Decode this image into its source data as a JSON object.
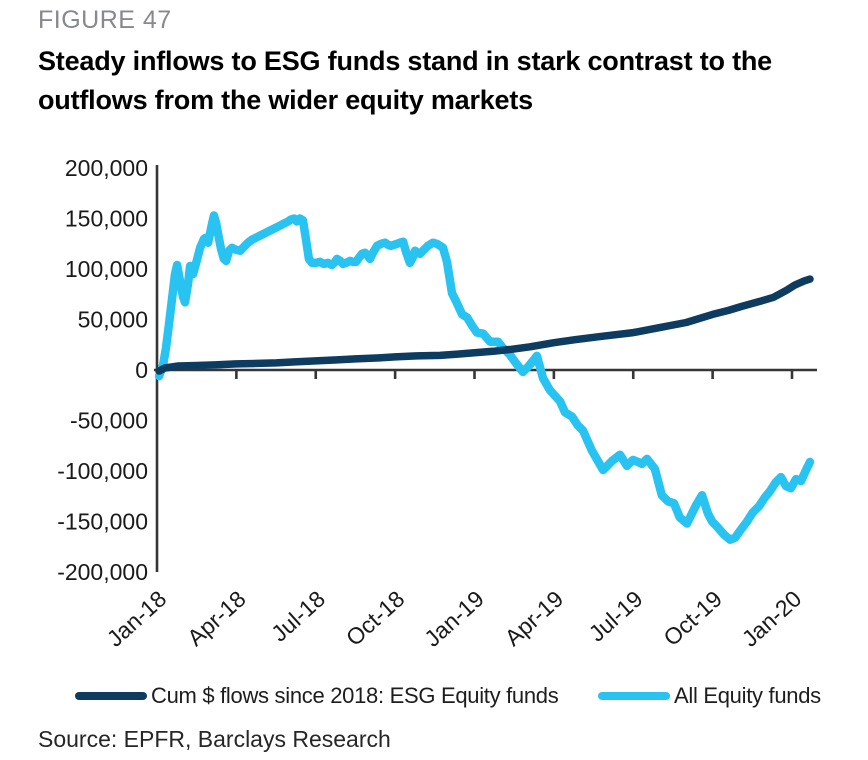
{
  "figure_label": "FIGURE 47",
  "title_line1": "Steady inflows to ESG funds stand in stark contrast to the",
  "title_line2": "outflows from the wider equity markets",
  "source": "Source: EPFR, Barclays Research",
  "colors": {
    "esg_navy": "#0e3c61",
    "all_equity_blue": "#29c3f2",
    "axis": "#363636",
    "tick_text": "#1a1a1a",
    "figure_label_gray": "#87898c"
  },
  "legend": {
    "items": [
      {
        "label": "Cum $ flows since 2018: ESG Equity funds",
        "series": "esg"
      },
      {
        "label": "All Equity funds",
        "series": "all_equity"
      }
    ]
  },
  "chart_data": {
    "type": "line",
    "title": "Steady inflows to ESG funds stand in stark contrast to the outflows from the wider equity markets",
    "x_axis": {
      "unit": "months since Jan-2018",
      "range": [
        0,
        24.9
      ],
      "ticks": [
        {
          "t": 0,
          "label": "Jan-18"
        },
        {
          "t": 3,
          "label": "Apr-18"
        },
        {
          "t": 6,
          "label": "Jul-18"
        },
        {
          "t": 9,
          "label": "Oct-18"
        },
        {
          "t": 12,
          "label": "Jan-19"
        },
        {
          "t": 15,
          "label": "Apr-19"
        },
        {
          "t": 18,
          "label": "Jul-19"
        },
        {
          "t": 21,
          "label": "Oct-19"
        },
        {
          "t": 24,
          "label": "Jan-20"
        }
      ]
    },
    "y_axis": {
      "unit": "USD mn, cumulative flows",
      "range": [
        -200000,
        200000
      ],
      "grid": false,
      "ticks": [
        {
          "v": 200000,
          "label": "200,000"
        },
        {
          "v": 150000,
          "label": "150,000"
        },
        {
          "v": 100000,
          "label": "100,000"
        },
        {
          "v": 50000,
          "label": "50,000"
        },
        {
          "v": 0,
          "label": "0"
        },
        {
          "v": -50000,
          "label": "-50,000"
        },
        {
          "v": -100000,
          "label": "-100,000"
        },
        {
          "v": -150000,
          "label": "-150,000"
        },
        {
          "v": -200000,
          "label": "-200,000"
        }
      ]
    },
    "series": [
      {
        "name": "Cum $ flows since 2018: ESG Equity funds",
        "id": "esg",
        "color": "#0e3c61",
        "stroke_width": 7.5,
        "points": [
          [
            0.08,
            -1000
          ],
          [
            0.3,
            2000
          ],
          [
            0.8,
            4000
          ],
          [
            1.5,
            4500
          ],
          [
            2.2,
            5000
          ],
          [
            3.0,
            6000
          ],
          [
            3.8,
            6500
          ],
          [
            4.5,
            7000
          ],
          [
            5.2,
            8000
          ],
          [
            6.0,
            9000
          ],
          [
            6.8,
            10000
          ],
          [
            7.5,
            11000
          ],
          [
            8.4,
            12000
          ],
          [
            9.0,
            13000
          ],
          [
            9.8,
            14000
          ],
          [
            10.7,
            14500
          ],
          [
            11.3,
            15500
          ],
          [
            12.0,
            17000
          ],
          [
            12.7,
            18500
          ],
          [
            13.4,
            20500
          ],
          [
            14.1,
            23000
          ],
          [
            15.0,
            27000
          ],
          [
            15.8,
            30000
          ],
          [
            16.7,
            33000
          ],
          [
            18.0,
            37000
          ],
          [
            19.0,
            42000
          ],
          [
            20.0,
            47000
          ],
          [
            21.0,
            55000
          ],
          [
            21.6,
            59000
          ],
          [
            22.1,
            63000
          ],
          [
            22.8,
            68000
          ],
          [
            23.3,
            72000
          ],
          [
            23.8,
            79000
          ],
          [
            24.1,
            84000
          ],
          [
            24.45,
            88000
          ],
          [
            24.68,
            90000
          ]
        ]
      },
      {
        "name": "All Equity funds",
        "id": "all_equity",
        "color": "#29c3f2",
        "stroke_width": 8.5,
        "points": [
          [
            0.08,
            -6000
          ],
          [
            0.23,
            5000
          ],
          [
            0.34,
            22000
          ],
          [
            0.45,
            45000
          ],
          [
            0.57,
            71000
          ],
          [
            0.68,
            95000
          ],
          [
            0.76,
            104000
          ],
          [
            0.87,
            88000
          ],
          [
            0.98,
            73000
          ],
          [
            1.06,
            67000
          ],
          [
            1.17,
            85000
          ],
          [
            1.25,
            103000
          ],
          [
            1.36,
            95000
          ],
          [
            1.47,
            105000
          ],
          [
            1.63,
            121000
          ],
          [
            1.78,
            130000
          ],
          [
            1.85,
            131000
          ],
          [
            1.93,
            126000
          ],
          [
            2.04,
            140000
          ],
          [
            2.15,
            153000
          ],
          [
            2.23,
            146000
          ],
          [
            2.31,
            135000
          ],
          [
            2.42,
            120000
          ],
          [
            2.53,
            110000
          ],
          [
            2.61,
            108000
          ],
          [
            2.72,
            118000
          ],
          [
            2.83,
            121000
          ],
          [
            2.99,
            119000
          ],
          [
            3.14,
            118000
          ],
          [
            3.29,
            122000
          ],
          [
            3.44,
            126000
          ],
          [
            3.59,
            129000
          ],
          [
            3.74,
            131000
          ],
          [
            3.89,
            133000
          ],
          [
            4.04,
            135000
          ],
          [
            4.2,
            137000
          ],
          [
            4.35,
            139000
          ],
          [
            4.5,
            141000
          ],
          [
            4.65,
            143000
          ],
          [
            4.8,
            145000
          ],
          [
            4.95,
            147000
          ],
          [
            5.06,
            149000
          ],
          [
            5.18,
            150000
          ],
          [
            5.29,
            147000
          ],
          [
            5.4,
            150000
          ],
          [
            5.52,
            148000
          ],
          [
            5.63,
            129000
          ],
          [
            5.74,
            110000
          ],
          [
            5.86,
            106000
          ],
          [
            6.01,
            106000
          ],
          [
            6.16,
            107000
          ],
          [
            6.31,
            105000
          ],
          [
            6.46,
            106000
          ],
          [
            6.61,
            104000
          ],
          [
            6.73,
            107000
          ],
          [
            6.8,
            110000
          ],
          [
            6.92,
            108000
          ],
          [
            7.03,
            105000
          ],
          [
            7.14,
            106000
          ],
          [
            7.3,
            108000
          ],
          [
            7.41,
            107000
          ],
          [
            7.52,
            107000
          ],
          [
            7.63,
            111000
          ],
          [
            7.75,
            115000
          ],
          [
            7.86,
            116000
          ],
          [
            7.97,
            113000
          ],
          [
            8.05,
            110000
          ],
          [
            8.16,
            116000
          ],
          [
            8.32,
            123000
          ],
          [
            8.47,
            125000
          ],
          [
            8.62,
            126000
          ],
          [
            8.73,
            124000
          ],
          [
            8.84,
            123000
          ],
          [
            8.96,
            124000
          ],
          [
            9.07,
            125000
          ],
          [
            9.18,
            126000
          ],
          [
            9.3,
            127000
          ],
          [
            9.41,
            117000
          ],
          [
            9.56,
            106000
          ],
          [
            9.68,
            112000
          ],
          [
            9.75,
            118000
          ],
          [
            9.86,
            116000
          ],
          [
            9.94,
            115000
          ],
          [
            10.05,
            118000
          ],
          [
            10.13,
            120000
          ],
          [
            10.24,
            123000
          ],
          [
            10.36,
            125000
          ],
          [
            10.43,
            126000
          ],
          [
            10.58,
            125000
          ],
          [
            10.7,
            123000
          ],
          [
            10.81,
            121000
          ],
          [
            10.96,
            107000
          ],
          [
            11.15,
            76000
          ],
          [
            11.34,
            66000
          ],
          [
            11.53,
            55000
          ],
          [
            11.72,
            52000
          ],
          [
            11.91,
            44000
          ],
          [
            12.09,
            37000
          ],
          [
            12.32,
            36000
          ],
          [
            12.59,
            28000
          ],
          [
            12.89,
            28000
          ],
          [
            13.04,
            23000
          ],
          [
            13.34,
            15000
          ],
          [
            13.53,
            8000
          ],
          [
            13.83,
            -2000
          ],
          [
            14.02,
            3000
          ],
          [
            14.21,
            9000
          ],
          [
            14.36,
            14000
          ],
          [
            14.59,
            -8000
          ],
          [
            14.85,
            -20000
          ],
          [
            15.23,
            -31000
          ],
          [
            15.42,
            -42000
          ],
          [
            15.68,
            -46000
          ],
          [
            15.91,
            -55000
          ],
          [
            16.1,
            -60000
          ],
          [
            16.44,
            -80000
          ],
          [
            16.86,
            -99000
          ],
          [
            17.2,
            -90000
          ],
          [
            17.5,
            -84000
          ],
          [
            17.76,
            -95000
          ],
          [
            17.99,
            -89000
          ],
          [
            18.18,
            -91000
          ],
          [
            18.33,
            -93000
          ],
          [
            18.52,
            -88000
          ],
          [
            18.82,
            -98000
          ],
          [
            19.08,
            -124000
          ],
          [
            19.31,
            -130000
          ],
          [
            19.54,
            -132000
          ],
          [
            19.76,
            -146000
          ],
          [
            20.03,
            -152000
          ],
          [
            20.37,
            -134000
          ],
          [
            20.6,
            -124000
          ],
          [
            20.82,
            -142000
          ],
          [
            20.98,
            -150000
          ],
          [
            21.2,
            -156000
          ],
          [
            21.43,
            -163000
          ],
          [
            21.66,
            -168000
          ],
          [
            21.85,
            -166000
          ],
          [
            22.07,
            -158000
          ],
          [
            22.3,
            -150000
          ],
          [
            22.52,
            -141000
          ],
          [
            22.75,
            -135000
          ],
          [
            22.98,
            -126000
          ],
          [
            23.17,
            -120000
          ],
          [
            23.39,
            -111000
          ],
          [
            23.58,
            -106000
          ],
          [
            23.77,
            -115000
          ],
          [
            23.96,
            -117000
          ],
          [
            24.15,
            -108000
          ],
          [
            24.34,
            -110000
          ],
          [
            24.53,
            -99000
          ],
          [
            24.68,
            -91000
          ]
        ]
      }
    ]
  }
}
